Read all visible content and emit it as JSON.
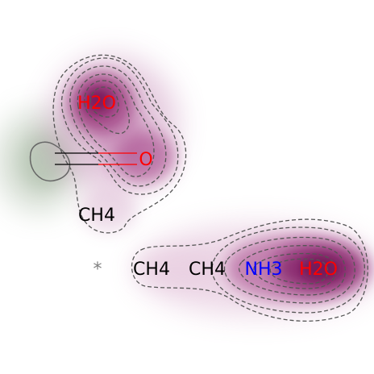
{
  "colors": {
    "oxygen": "#ff0000",
    "nitrogen": "#0000ff",
    "carbon": "#000000",
    "density_positive": "#8b1a68",
    "density_negative": "#9fb29a",
    "contour": "#555555",
    "bond": "#000000",
    "asterisk": "#808080"
  },
  "labels": {
    "h2o_top": "H2O",
    "o_mid": "O",
    "ch4_mid": "CH4",
    "asterisk": "*",
    "ch4_bottom_1": "CH4",
    "ch4_bottom_2": "CH4",
    "nh3": "NH3",
    "h2o_bottom": "H2O"
  }
}
